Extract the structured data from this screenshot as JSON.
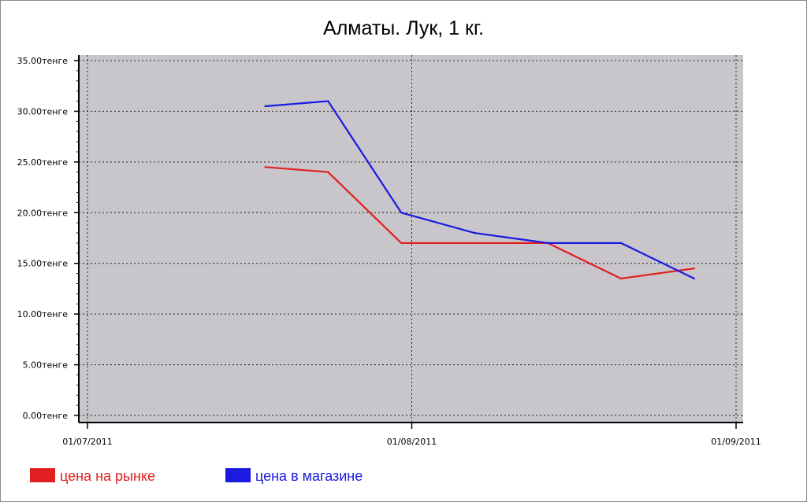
{
  "chart_data": {
    "type": "line",
    "title": "Алматы. Лук, 1 кг.",
    "xlabel": "",
    "ylabel": "",
    "ylim": [
      0,
      35
    ],
    "y_ticks": [
      0,
      5,
      10,
      15,
      20,
      25,
      30,
      35
    ],
    "y_tick_labels": [
      "0.00тенге",
      "5.00тенге",
      "10.00тенге",
      "15.00тенге",
      "20.00тенге",
      "25.00тенге",
      "30.00тенге",
      "35.00тенге"
    ],
    "x_axis_type": "date",
    "xlim": [
      "2011-06-30",
      "2011-09-01"
    ],
    "x_ticks": [
      "2011-07-01",
      "2011-08-01",
      "2011-09-01"
    ],
    "x_tick_labels": [
      "01/07/2011",
      "01/08/2011",
      "01/09/2011"
    ],
    "grid": true,
    "legend_position": "bottom-left",
    "background_color": "#c8c6ca",
    "series": [
      {
        "name": "цена на рынке",
        "color": "#e02020",
        "x": [
          "2011-07-18",
          "2011-07-24",
          "2011-07-31",
          "2011-08-07",
          "2011-08-14",
          "2011-08-21",
          "2011-08-28"
        ],
        "y": [
          24.5,
          24.0,
          17.0,
          17.0,
          17.0,
          13.5,
          14.5
        ]
      },
      {
        "name": "цена в магазине",
        "color": "#1a1ae0",
        "x": [
          "2011-07-18",
          "2011-07-24",
          "2011-07-31",
          "2011-08-07",
          "2011-08-14",
          "2011-08-21",
          "2011-08-28"
        ],
        "y": [
          30.5,
          31.0,
          20.0,
          18.0,
          17.0,
          17.0,
          13.5
        ]
      }
    ]
  }
}
